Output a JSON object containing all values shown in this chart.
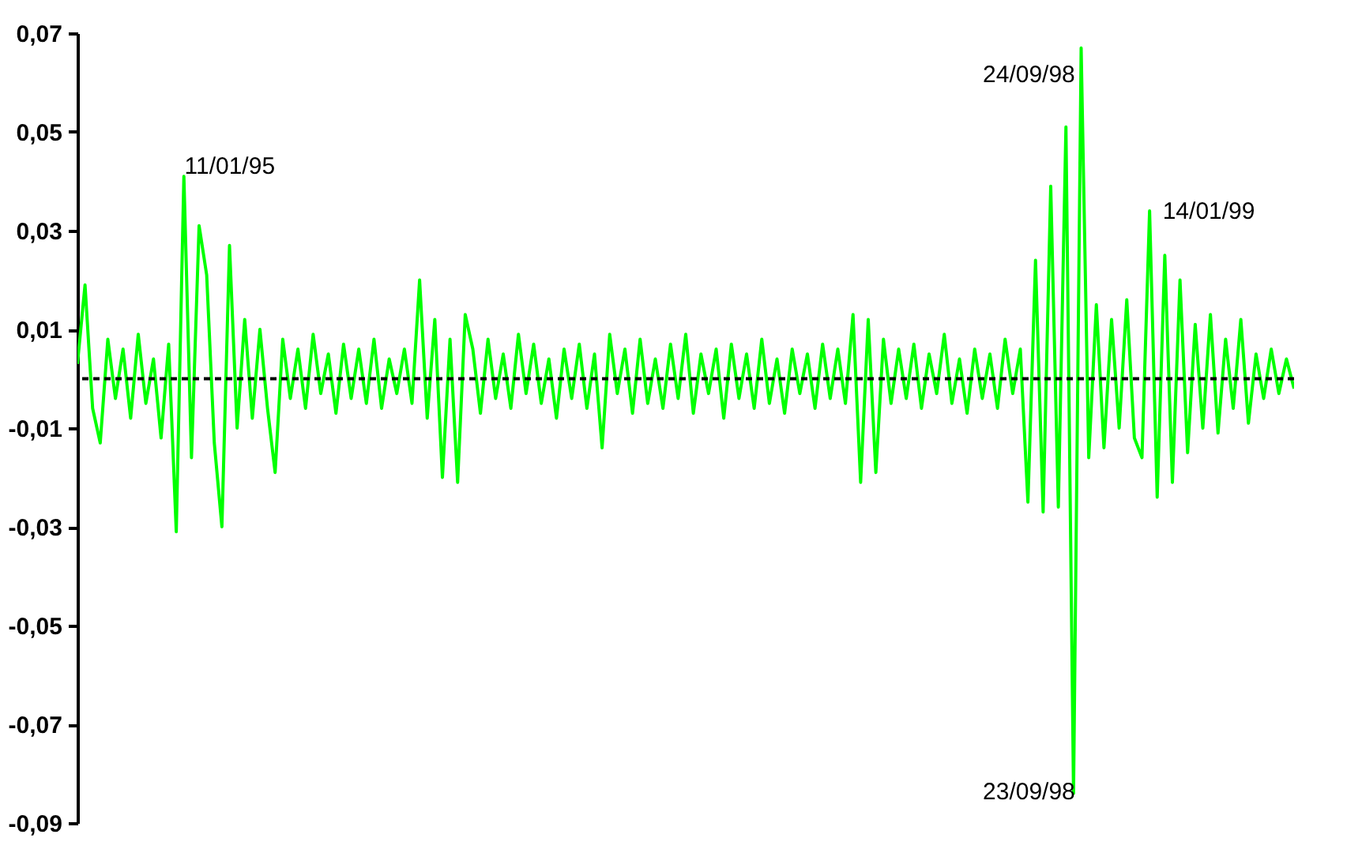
{
  "chart_data": {
    "type": "line",
    "categories": [
      null,
      null,
      null,
      null,
      null,
      null,
      null,
      null,
      null,
      null,
      null,
      null,
      null,
      null,
      null,
      null,
      null,
      null,
      null,
      null,
      null,
      null,
      null,
      null,
      null,
      null,
      null,
      null,
      null,
      null,
      null,
      null,
      null,
      null,
      null,
      null,
      null,
      null,
      null,
      null,
      null,
      null,
      null,
      null,
      null,
      null,
      null,
      null,
      null,
      null,
      null,
      null,
      null,
      null,
      null,
      null,
      null,
      null,
      null,
      null,
      null,
      null,
      null,
      null,
      null,
      null,
      null,
      null,
      null,
      null,
      null,
      null,
      null,
      null,
      null,
      null,
      null,
      null,
      null,
      null,
      null,
      null,
      null,
      null,
      null,
      null,
      null,
      null,
      null,
      null,
      null,
      null,
      null,
      null,
      null,
      null,
      null,
      null,
      null,
      null,
      null,
      null,
      null,
      null,
      null,
      null,
      null,
      null,
      null,
      null,
      null,
      null,
      null,
      null,
      null,
      null,
      null,
      null,
      null,
      null,
      null,
      null,
      null,
      null,
      null,
      null,
      null,
      null,
      null,
      null,
      null,
      null,
      null,
      null,
      null,
      null,
      null,
      null,
      null,
      null,
      null,
      null,
      null,
      null,
      null,
      null,
      null,
      null,
      null,
      null,
      null,
      null,
      null,
      null,
      null,
      null,
      null,
      null,
      null,
      null,
      null
    ],
    "series": [
      {
        "color": "#00ff00",
        "values": [
          0.003,
          0.019,
          -0.006,
          -0.013,
          0.008,
          -0.004,
          0.006,
          -0.008,
          0.009,
          -0.005,
          0.004,
          -0.012,
          0.007,
          -0.031,
          0.041,
          -0.016,
          0.031,
          0.021,
          -0.013,
          -0.03,
          0.027,
          -0.01,
          0.012,
          -0.008,
          0.01,
          -0.006,
          -0.019,
          0.008,
          -0.004,
          0.006,
          -0.006,
          0.009,
          -0.003,
          0.005,
          -0.007,
          0.007,
          -0.004,
          0.006,
          -0.005,
          0.008,
          -0.006,
          0.004,
          -0.003,
          0.006,
          -0.005,
          0.02,
          -0.008,
          0.012,
          -0.02,
          0.008,
          -0.021,
          0.013,
          0.006,
          -0.007,
          0.008,
          -0.004,
          0.005,
          -0.006,
          0.009,
          -0.003,
          0.007,
          -0.005,
          0.004,
          -0.008,
          0.006,
          -0.004,
          0.007,
          -0.006,
          0.005,
          -0.014,
          0.009,
          -0.003,
          0.006,
          -0.007,
          0.008,
          -0.005,
          0.004,
          -0.006,
          0.007,
          -0.004,
          0.009,
          -0.007,
          0.005,
          -0.003,
          0.006,
          -0.008,
          0.007,
          -0.004,
          0.005,
          -0.006,
          0.008,
          -0.005,
          0.004,
          -0.007,
          0.006,
          -0.003,
          0.005,
          -0.006,
          0.007,
          -0.004,
          0.006,
          -0.005,
          0.013,
          -0.021,
          0.012,
          -0.019,
          0.008,
          -0.005,
          0.006,
          -0.004,
          0.007,
          -0.006,
          0.005,
          -0.003,
          0.009,
          -0.005,
          0.004,
          -0.007,
          0.006,
          -0.004,
          0.005,
          -0.006,
          0.008,
          -0.003,
          0.006,
          -0.025,
          0.024,
          -0.027,
          0.039,
          -0.026,
          0.051,
          -0.084,
          0.067,
          -0.016,
          0.015,
          -0.014,
          0.012,
          -0.01,
          0.016,
          -0.012,
          -0.016,
          0.034,
          -0.024,
          0.025,
          -0.021,
          0.02,
          -0.015,
          0.011,
          -0.01,
          0.013,
          -0.011,
          0.008,
          -0.006,
          0.012,
          -0.009,
          0.005,
          -0.004,
          0.006,
          -0.003,
          0.004,
          -0.002
        ]
      }
    ],
    "ylim": [
      -0.09,
      0.07
    ],
    "yticks": [
      {
        "value": -0.09,
        "label": "-0,09"
      },
      {
        "value": -0.07,
        "label": "-0,07"
      },
      {
        "value": -0.05,
        "label": "-0,05"
      },
      {
        "value": -0.03,
        "label": "-0,03"
      },
      {
        "value": -0.01,
        "label": "-0,01"
      },
      {
        "value": 0.01,
        "label": "0,01"
      },
      {
        "value": 0.03,
        "label": "0,03"
      },
      {
        "value": 0.05,
        "label": "0,05"
      },
      {
        "value": 0.07,
        "label": "0,07"
      }
    ],
    "tick_labels": "y",
    "grid": false,
    "ref_lines": [
      {
        "axis": "y",
        "value": 0,
        "color": "#000000",
        "line_style": "dashed"
      }
    ],
    "annotations": [
      "11/01/95",
      "24/09/98",
      "14/01/99",
      "23/09/98"
    ]
  }
}
